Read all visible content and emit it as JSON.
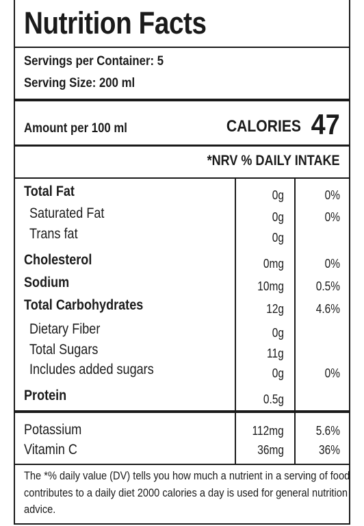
{
  "title": "Nutrition Facts",
  "servings_per_container": "Servings per Container: 5",
  "serving_size": "Serving Size: 200 ml",
  "amount_per": "Amount per 100 ml",
  "calories_label": "CALORIES",
  "calories_value": "47",
  "nrv_header": "*NRV % DAILY INTAKE",
  "nutrients": [
    {
      "name": "Total Fat",
      "quantity": "0g",
      "daily_value": "0%"
    },
    {
      "name": "Saturated Fat",
      "quantity": "0g",
      "daily_value": "0%"
    },
    {
      "name": "Trans fat",
      "quantity": "0g",
      "daily_value": ""
    },
    {
      "name": "Cholesterol",
      "quantity": "0mg",
      "daily_value": "0%"
    },
    {
      "name": "Sodium",
      "quantity": "10mg",
      "daily_value": "0.5%"
    },
    {
      "name": "Total Carbohydrates",
      "quantity": "12g",
      "daily_value": "4.6%"
    },
    {
      "name": "Dietary Fiber",
      "quantity": "0g",
      "daily_value": ""
    },
    {
      "name": "Total Sugars",
      "quantity": "11g",
      "daily_value": ""
    },
    {
      "name": "Includes added sugars",
      "quantity": "0g",
      "daily_value": "0%"
    },
    {
      "name": "Protein",
      "quantity": "0.5g",
      "daily_value": ""
    }
  ],
  "minerals": [
    {
      "name": "Potassium",
      "quantity": "112mg",
      "daily_value": "5.6%"
    },
    {
      "name": "Vitamin C",
      "quantity": "36mg",
      "daily_value": "36%"
    }
  ],
  "footnote": "The *% daily value (DV) tells you how much a nutrient in a serving of food contributes to a daily diet 2000 calories a day is used for general nutrition advice."
}
